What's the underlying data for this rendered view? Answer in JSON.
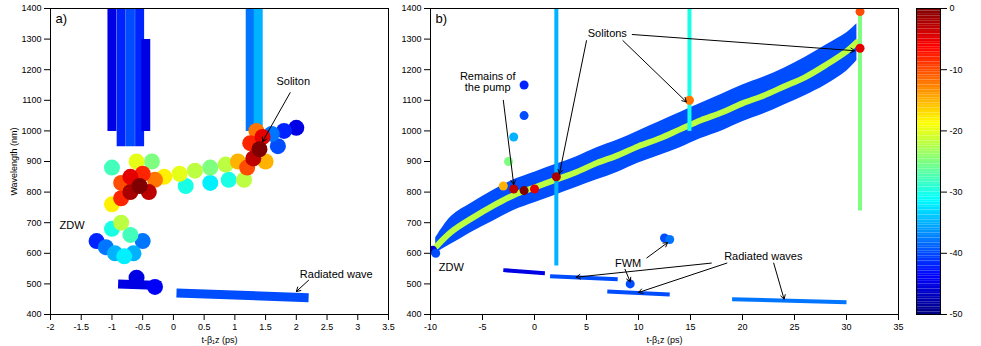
{
  "chart_data": [
    {
      "type": "heatmap",
      "panel": "a)",
      "xlabel": "t-β₁z (ps)",
      "ylabel": "Wavelength (nm)",
      "xlim": [
        -2,
        3.5
      ],
      "xticks": [
        -2,
        -1.5,
        -1,
        -0.5,
        0,
        0.5,
        1,
        1.5,
        2,
        2.5,
        3,
        3.5
      ],
      "ylim": [
        400,
        1400
      ],
      "yticks": [
        400,
        500,
        600,
        700,
        800,
        900,
        1000,
        1100,
        1200,
        1300,
        1400
      ],
      "streaks": [
        [
          -1.0,
          1000,
          -1.0,
          1400,
          -45
        ],
        [
          -0.85,
          950,
          -0.85,
          1400,
          -42
        ],
        [
          -0.7,
          950,
          -0.7,
          1400,
          -40
        ],
        [
          -0.55,
          950,
          -0.55,
          1400,
          -42
        ],
        [
          -0.45,
          1000,
          -0.45,
          1300,
          -45
        ],
        [
          1.25,
          1000,
          1.25,
          1400,
          -38
        ],
        [
          1.38,
          1000,
          1.38,
          1400,
          -35
        ],
        [
          0.05,
          470,
          2.2,
          455,
          -40
        ],
        [
          -0.9,
          500,
          -0.2,
          495,
          -45
        ]
      ],
      "cells": [
        [
          -1.25,
          640,
          -42
        ],
        [
          -1.1,
          620,
          -38
        ],
        [
          -0.95,
          600,
          -35
        ],
        [
          -0.8,
          590,
          -32
        ],
        [
          -0.65,
          600,
          -35
        ],
        [
          -1.0,
          680,
          -30
        ],
        [
          -0.85,
          700,
          -22
        ],
        [
          -0.7,
          660,
          -28
        ],
        [
          -0.5,
          640,
          -38
        ],
        [
          -1.0,
          760,
          -18
        ],
        [
          -0.85,
          780,
          -8
        ],
        [
          -0.7,
          800,
          -2
        ],
        [
          -0.55,
          820,
          0
        ],
        [
          -0.4,
          800,
          -3
        ],
        [
          -0.85,
          830,
          -10
        ],
        [
          -0.7,
          850,
          -5
        ],
        [
          -0.5,
          860,
          -8
        ],
        [
          -0.3,
          840,
          -12
        ],
        [
          -0.6,
          900,
          -20
        ],
        [
          -0.35,
          900,
          -25
        ],
        [
          -1.0,
          880,
          -28
        ],
        [
          -0.15,
          850,
          -18
        ],
        [
          0.1,
          860,
          -20
        ],
        [
          0.35,
          870,
          -22
        ],
        [
          0.6,
          880,
          -25
        ],
        [
          0.85,
          890,
          -22
        ],
        [
          1.05,
          900,
          -15
        ],
        [
          0.2,
          820,
          -30
        ],
        [
          0.6,
          830,
          -32
        ],
        [
          0.9,
          840,
          -30
        ],
        [
          1.2,
          880,
          -10
        ],
        [
          1.3,
          910,
          -3
        ],
        [
          1.4,
          940,
          0
        ],
        [
          1.45,
          980,
          -5
        ],
        [
          1.35,
          1000,
          -12
        ],
        [
          1.25,
          960,
          -8
        ],
        [
          1.5,
          900,
          -15
        ],
        [
          1.15,
          840,
          -22
        ],
        [
          1.6,
          990,
          -38
        ],
        [
          1.8,
          1000,
          -42
        ],
        [
          2.0,
          1010,
          -45
        ],
        [
          1.7,
          950,
          -40
        ],
        [
          -0.6,
          520,
          -45
        ],
        [
          -0.3,
          490,
          -44
        ]
      ],
      "annotations": [
        {
          "text": "Soliton",
          "x": 1.95,
          "y": 1160,
          "arrows": [
            {
              "from": [
                1.9,
                1125
              ],
              "to": [
                1.45,
                965
              ]
            }
          ]
        },
        {
          "text": "ZDW",
          "x": -1.65,
          "y": 690,
          "arrows": []
        },
        {
          "text": "Radiated wave",
          "x": 2.65,
          "y": 530,
          "arrows": [
            {
              "from": [
                2.2,
                512
              ],
              "to": [
                2.0,
                475
              ]
            }
          ]
        }
      ]
    },
    {
      "type": "heatmap",
      "panel": "b)",
      "xlabel": "t-β₁z (ps)",
      "xlim": [
        -10,
        35
      ],
      "xticks": [
        -10,
        -5,
        0,
        5,
        10,
        15,
        20,
        25,
        30,
        35
      ],
      "ylim": [
        400,
        1400
      ],
      "yticks": [
        400,
        500,
        600,
        700,
        800,
        900,
        1000,
        1100,
        1200,
        1300,
        1400
      ],
      "band": {
        "t": [
          -9.5,
          -8,
          -6,
          -4,
          -2,
          0,
          2,
          4,
          6,
          8,
          10,
          12,
          14,
          16,
          18,
          20,
          22,
          24,
          26,
          28,
          30,
          31
        ],
        "lower": [
          600,
          630,
          670,
          705,
          740,
          765,
          790,
          815,
          840,
          865,
          895,
          920,
          945,
          975,
          1000,
          1030,
          1055,
          1085,
          1115,
          1150,
          1195,
          1230
        ],
        "upper": [
          650,
          720,
          765,
          805,
          840,
          865,
          890,
          915,
          945,
          970,
          1000,
          1030,
          1060,
          1090,
          1120,
          1150,
          1175,
          1205,
          1240,
          1280,
          1320,
          1350
        ],
        "dB": -40
      },
      "ridge": {
        "t": [
          -9.5,
          -8,
          -6,
          -4,
          -2,
          0,
          2,
          4,
          6,
          8,
          10,
          12,
          14,
          16,
          18,
          20,
          22,
          24,
          26,
          28,
          30,
          31
        ],
        "wavelength": [
          620,
          670,
          715,
          755,
          790,
          815,
          840,
          865,
          895,
          920,
          950,
          975,
          1005,
          1035,
          1060,
          1090,
          1115,
          1145,
          1175,
          1215,
          1260,
          1290
        ],
        "dB": -22
      },
      "streaks": [
        [
          2.1,
          560,
          2.1,
          1400,
          -35
        ],
        [
          14.9,
          1000,
          14.9,
          1400,
          -30
        ],
        [
          31.3,
          740,
          31.3,
          1400,
          -25
        ],
        [
          1.5,
          525,
          8,
          515,
          -40
        ],
        [
          7,
          475,
          13,
          465,
          -40
        ],
        [
          19,
          450,
          30,
          440,
          -38
        ],
        [
          -3,
          545,
          1,
          535,
          -45
        ]
      ],
      "cells": [
        [
          -9.8,
          610,
          -45
        ],
        [
          -9.5,
          600,
          -40
        ],
        [
          -1,
          1150,
          -42
        ],
        [
          -1,
          1050,
          -40
        ],
        [
          -2,
          980,
          -35
        ],
        [
          -2.5,
          900,
          -25
        ],
        [
          -3,
          820,
          -15
        ],
        [
          -2,
          810,
          -3
        ],
        [
          -1,
          805,
          0
        ],
        [
          0,
          810,
          -5
        ],
        [
          2.1,
          850,
          -2
        ],
        [
          14.9,
          1100,
          -12
        ],
        [
          31.3,
          1270,
          -5
        ],
        [
          31.3,
          1390,
          -10
        ],
        [
          9.2,
          500,
          -40
        ],
        [
          13,
          645,
          -38
        ],
        [
          12.5,
          650,
          -40
        ]
      ],
      "annotations": [
        {
          "text": "Remains of the pump",
          "x": -4.5,
          "y": 1160,
          "arrows": [
            {
              "from": [
                -3,
                1100
              ],
              "to": [
                -2,
                825
              ]
            }
          ]
        },
        {
          "text": "Solitons",
          "x": 7,
          "y": 1320,
          "arrows": [
            {
              "from": [
                5,
                1295
              ],
              "to": [
                2.4,
                860
              ]
            },
            {
              "from": [
                8.5,
                1295
              ],
              "to": [
                14.6,
                1095
              ]
            },
            {
              "from": [
                9.4,
                1315
              ],
              "to": [
                30.8,
                1262
              ]
            }
          ]
        },
        {
          "text": "ZDW",
          "x": -8,
          "y": 555,
          "arrows": []
        },
        {
          "text": "FWM",
          "x": 9,
          "y": 568,
          "arrows": [
            {
              "from": [
                8.7,
                548
              ],
              "to": [
                9.2,
                507
              ]
            },
            {
              "from": [
                10.8,
                585
              ],
              "to": [
                12.8,
                635
              ]
            }
          ]
        },
        {
          "text": "Radiated waves",
          "x": 22,
          "y": 590,
          "arrows": [
            {
              "from": [
                17,
                568
              ],
              "to": [
                4,
                522
              ]
            },
            {
              "from": [
                18.5,
                568
              ],
              "to": [
                10,
                472
              ]
            },
            {
              "from": [
                23,
                568
              ],
              "to": [
                24,
                450
              ]
            }
          ]
        }
      ],
      "colorbar": {
        "lim": [
          -50,
          0
        ],
        "ticks": [
          0,
          -10,
          -20,
          -30,
          -40,
          -50
        ]
      }
    }
  ]
}
